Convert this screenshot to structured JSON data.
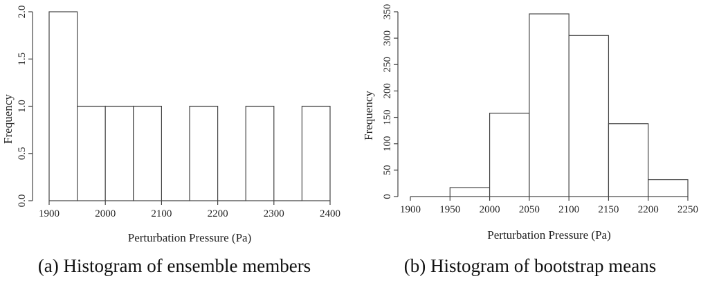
{
  "chart_data": [
    {
      "type": "bar",
      "caption": "(a) Histogram of ensemble members",
      "xlabel": "Perturbation Pressure (Pa)",
      "ylabel": "Frequency",
      "xlim": [
        1900,
        2400
      ],
      "ylim": [
        0,
        2.0
      ],
      "xticks": [
        1900,
        2000,
        2100,
        2200,
        2300,
        2400
      ],
      "yticks": [
        "0.0",
        "0.5",
        "1.0",
        "1.5",
        "2.0"
      ],
      "bins": [
        {
          "start": 1900,
          "end": 1950,
          "value": 2
        },
        {
          "start": 1950,
          "end": 2000,
          "value": 1
        },
        {
          "start": 2000,
          "end": 2050,
          "value": 1
        },
        {
          "start": 2050,
          "end": 2100,
          "value": 1
        },
        {
          "start": 2100,
          "end": 2150,
          "value": 0
        },
        {
          "start": 2150,
          "end": 2200,
          "value": 1
        },
        {
          "start": 2200,
          "end": 2250,
          "value": 0
        },
        {
          "start": 2250,
          "end": 2300,
          "value": 1
        },
        {
          "start": 2300,
          "end": 2350,
          "value": 0
        },
        {
          "start": 2350,
          "end": 2400,
          "value": 1
        }
      ]
    },
    {
      "type": "bar",
      "caption": "(b) Histogram of bootstrap means",
      "xlabel": "Perturbation Pressure (Pa)",
      "ylabel": "Frequency",
      "xlim": [
        1900,
        2250
      ],
      "ylim": [
        0,
        350
      ],
      "xticks": [
        1900,
        1950,
        2000,
        2050,
        2100,
        2150,
        2200,
        2250
      ],
      "yticks": [
        "0",
        "50",
        "100",
        "150",
        "200",
        "250",
        "300",
        "350"
      ],
      "bins": [
        {
          "start": 1900,
          "end": 1950,
          "value": 0
        },
        {
          "start": 1950,
          "end": 2000,
          "value": 17
        },
        {
          "start": 2000,
          "end": 2050,
          "value": 158
        },
        {
          "start": 2050,
          "end": 2100,
          "value": 346
        },
        {
          "start": 2100,
          "end": 2150,
          "value": 305
        },
        {
          "start": 2150,
          "end": 2200,
          "value": 138
        },
        {
          "start": 2200,
          "end": 2250,
          "value": 32
        }
      ]
    }
  ]
}
